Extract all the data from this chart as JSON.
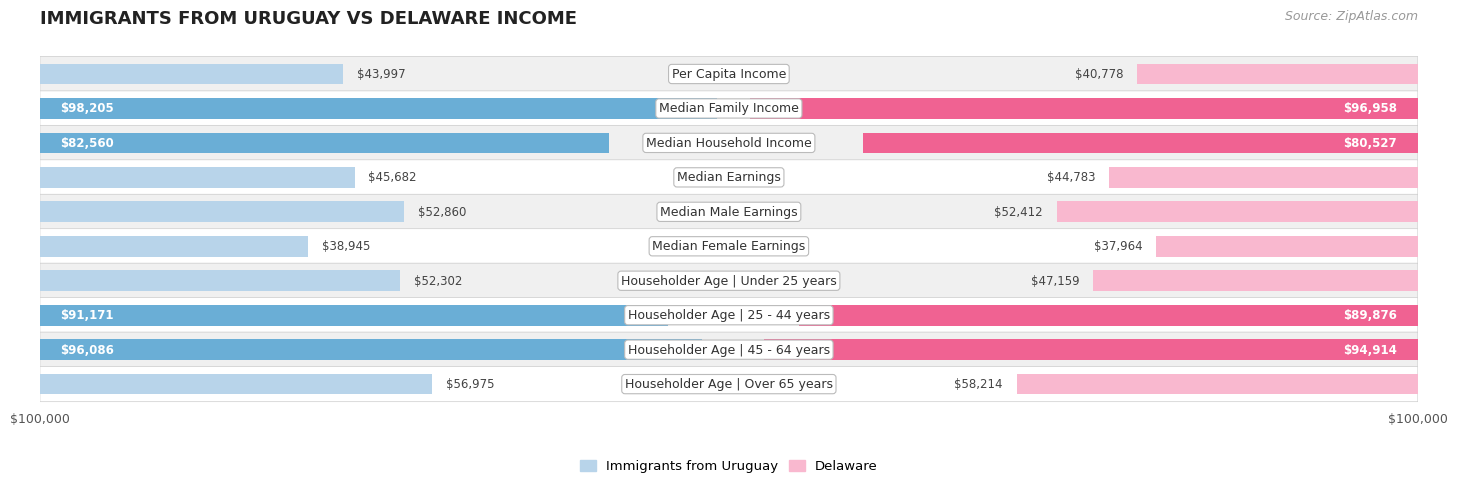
{
  "title": "IMMIGRANTS FROM URUGUAY VS DELAWARE INCOME",
  "source": "Source: ZipAtlas.com",
  "categories": [
    "Per Capita Income",
    "Median Family Income",
    "Median Household Income",
    "Median Earnings",
    "Median Male Earnings",
    "Median Female Earnings",
    "Householder Age | Under 25 years",
    "Householder Age | 25 - 44 years",
    "Householder Age | 45 - 64 years",
    "Householder Age | Over 65 years"
  ],
  "uruguay_values": [
    43997,
    98205,
    82560,
    45682,
    52860,
    38945,
    52302,
    91171,
    96086,
    56975
  ],
  "delaware_values": [
    40778,
    96958,
    80527,
    44783,
    52412,
    37964,
    47159,
    89876,
    94914,
    58214
  ],
  "max_value": 100000,
  "uruguay_color_light": "#b8d4ea",
  "uruguay_color_dark": "#6aaed6",
  "delaware_color_light": "#f9b8cf",
  "delaware_color_dark": "#f06292",
  "row_bg_odd": "#f0f0f0",
  "row_bg_even": "#ffffff",
  "bar_height": 0.6,
  "label_fontsize": 9.0,
  "title_fontsize": 13,
  "legend_fontsize": 9.5,
  "value_fontsize": 8.5,
  "source_fontsize": 9,
  "inside_threshold": 60000,
  "inside_color": "#ffffff",
  "outside_color": "#444444"
}
